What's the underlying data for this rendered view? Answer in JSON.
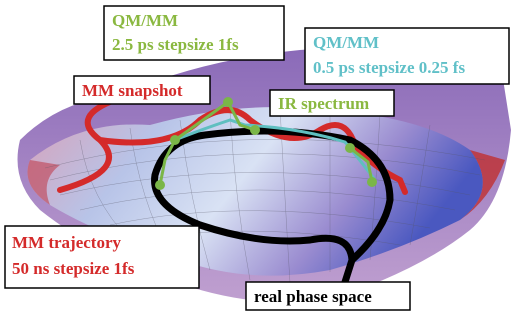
{
  "boxes": [
    {
      "lines": [
        "QM/MM",
        "2.5 ps stepsize 1fs"
      ]
    },
    {
      "lines": [
        "QM/MM",
        "0.5 ps stepsize 0.25 fs"
      ]
    },
    {
      "lines": [
        "MM snapshot"
      ]
    },
    {
      "lines": [
        "IR spectrum"
      ]
    },
    {
      "lines": [
        "MM trajectory",
        "50 ns stepsize 1fs"
      ]
    },
    {
      "lines": [
        "real phase space"
      ]
    }
  ]
}
